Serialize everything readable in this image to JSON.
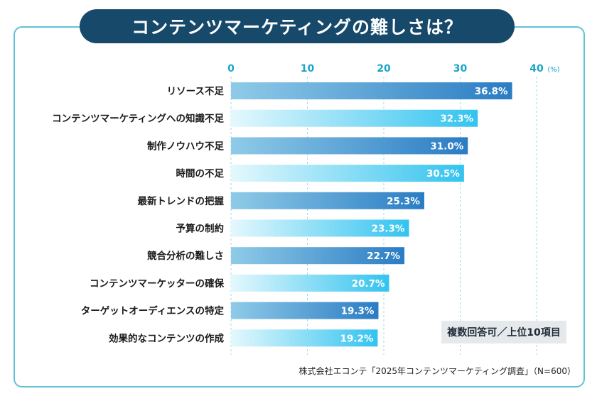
{
  "title": "コンテンツマーケティングの難しさは？",
  "note": "複数回答可／上位10項目",
  "source": "株式会社エコンテ「2025年コンテンツマーケティング調査」（N=600）",
  "colors": {
    "title_bg": "#17496b",
    "frame": "#5fc2d8",
    "tick": "#1aa4c8",
    "bar_dark": [
      "#8fcbe8",
      "#2a7cc4"
    ],
    "bar_light": [
      "#e4f8fd",
      "#33c3ef"
    ]
  },
  "chart_data": {
    "type": "bar",
    "orientation": "horizontal",
    "categories": [
      "リソース不足",
      "コンテンツマーケティングへの知識不足",
      "制作ノウハウ不足",
      "時間の不足",
      "最新トレンドの把握",
      "予算の制約",
      "競合分析の難しさ",
      "コンテンツマーケッターの確保",
      "ターゲットオーディエンスの特定",
      "効果的なコンテンツの作成"
    ],
    "values": [
      36.8,
      32.3,
      31.0,
      30.5,
      25.3,
      23.3,
      22.7,
      20.7,
      19.3,
      19.2
    ],
    "value_labels": [
      "36.8%",
      "32.3%",
      "31.0%",
      "30.5%",
      "25.3%",
      "23.3%",
      "22.7%",
      "20.7%",
      "19.3%",
      "19.2%"
    ],
    "xlim": [
      0,
      40
    ],
    "xticks": [
      "0",
      "10",
      "20",
      "30",
      "40"
    ],
    "unit": "(%)",
    "grid": true
  }
}
